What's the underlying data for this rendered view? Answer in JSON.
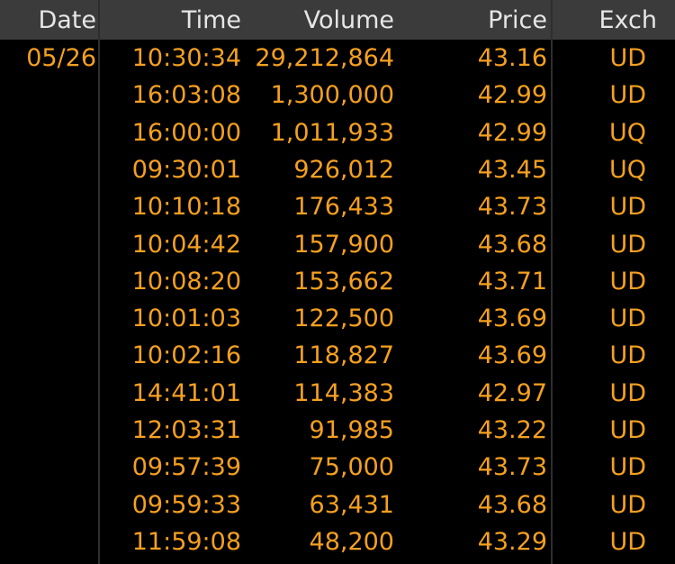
{
  "table": {
    "header": [
      "Date",
      "Time",
      "Volume",
      "Price",
      "Exch"
    ],
    "rows": [
      {
        "date": "05/26",
        "time": "10:30:34",
        "volume": "29,212,864",
        "price": "43.16",
        "exch": "UD"
      },
      {
        "time": "16:03:08",
        "volume": "1,300,000",
        "price": "42.99",
        "exch": "UD"
      },
      {
        "time": "16:00:00",
        "volume": "1,011,933",
        "price": "42.99",
        "exch": "UQ"
      },
      {
        "time": "09:30:01",
        "volume": "926,012",
        "price": "43.45",
        "exch": "UQ"
      },
      {
        "time": "10:10:18",
        "volume": "176,433",
        "price": "43.73",
        "exch": "UD"
      },
      {
        "time": "10:04:42",
        "volume": "157,900",
        "price": "43.68",
        "exch": "UD"
      },
      {
        "time": "10:08:20",
        "volume": "153,662",
        "price": "43.71",
        "exch": "UD"
      },
      {
        "time": "10:01:03",
        "volume": "122,500",
        "price": "43.69",
        "exch": "UD"
      },
      {
        "time": "10:02:16",
        "volume": "118,827",
        "price": "43.69",
        "exch": "UD"
      },
      {
        "time": "14:41:01",
        "volume": "114,383",
        "price": "42.97",
        "exch": "UD"
      },
      {
        "time": "12:03:31",
        "volume": "91,985",
        "price": "43.22",
        "exch": "UD"
      },
      {
        "time": "09:57:39",
        "volume": "75,000",
        "price": "43.73",
        "exch": "UD"
      },
      {
        "time": "09:59:33",
        "volume": "63,431",
        "price": "43.68",
        "exch": "UD"
      },
      {
        "time": "11:59:08",
        "volume": "48,200",
        "price": "43.29",
        "exch": "UD"
      }
    ]
  }
}
